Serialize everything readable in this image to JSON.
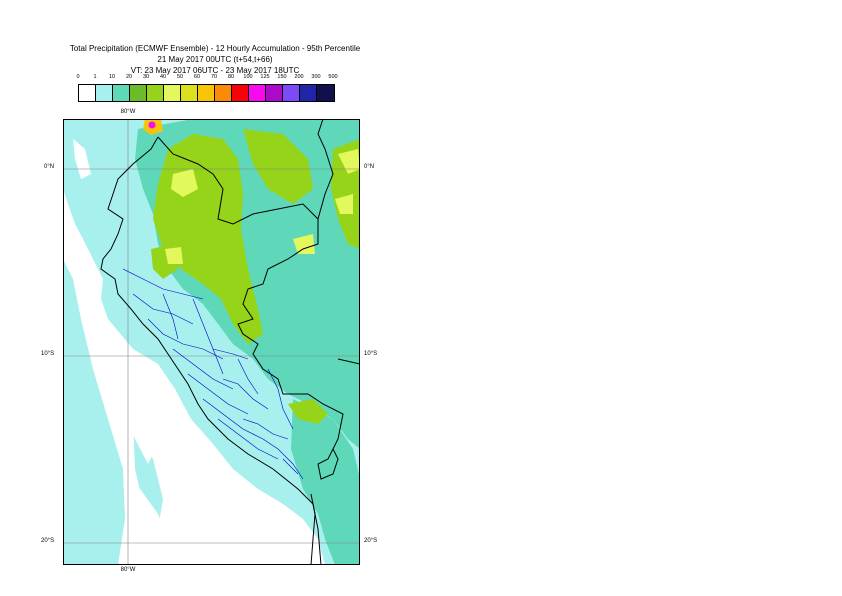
{
  "title": {
    "line1": "Total Precipitation (ECMWF Ensemble) - 12 Hourly Accumulation - 95th Percentile",
    "line2": "21 May 2017 00UTC (t+54,t+66)",
    "line3": "VT: 23 May 2017 06UTC - 23 May 2017 18UTC"
  },
  "legend": {
    "ticks": [
      "0",
      "1",
      "10",
      "20",
      "30",
      "40",
      "50",
      "60",
      "70",
      "80",
      "100",
      "125",
      "150",
      "200",
      "300",
      "500"
    ],
    "colors": [
      "#ffffff",
      "#a8f0ee",
      "#5ed8b8",
      "#6cbc2a",
      "#96d41a",
      "#e2f85c",
      "#dede20",
      "#f8c40a",
      "#fa8a08",
      "#f8020a",
      "#f80af0",
      "#ac0ac8",
      "#7c4af6",
      "#2024a8",
      "#10104a"
    ]
  },
  "axes": {
    "lat_labels": [
      "0°N",
      "10°S",
      "20°S"
    ],
    "lon_label": "80°W"
  },
  "map_colors": {
    "ocean_background": "#ffffff",
    "light_precip": "#a8f0ee",
    "moderate_precip": "#5ed8b8",
    "heavy_precip": "#96d41a",
    "very_heavy_precip": "#e2f85c",
    "coastline": "#000000",
    "admin_boundaries": "#0000cc",
    "graticule": "#808080"
  }
}
